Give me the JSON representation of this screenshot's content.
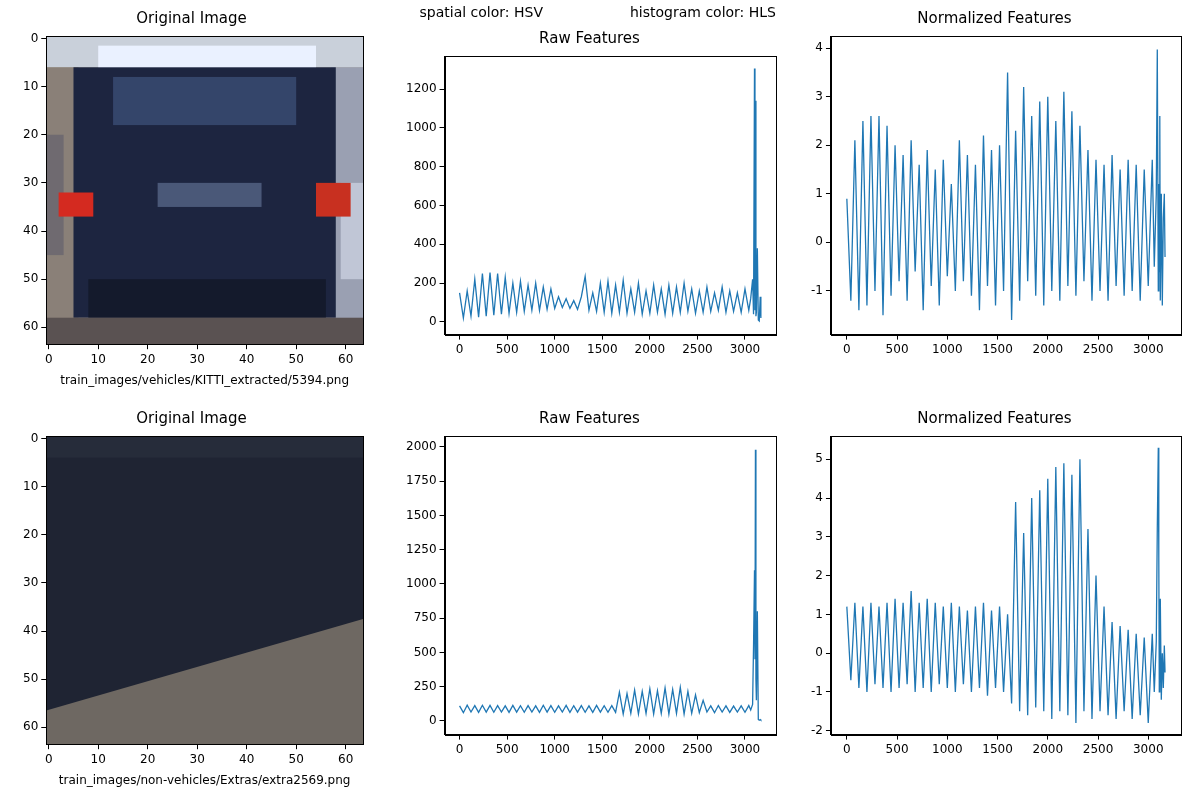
{
  "chart_data": [
    {
      "type": "image",
      "title": "Original Image",
      "xlabel": "train_images/vehicles/KITTI_extracted/5394.png",
      "xlim": [
        -0.5,
        63.5
      ],
      "ylim": [
        63.5,
        -0.5
      ],
      "xticks": [
        0,
        10,
        20,
        30,
        40,
        50,
        60
      ],
      "yticks": [
        0,
        10,
        20,
        30,
        40,
        50,
        60
      ],
      "grid": false
    },
    {
      "type": "line",
      "title": "Raw Features",
      "annotations": [
        "spatial color: HSV",
        "histogram color: HLS"
      ],
      "color": "#1f77b4",
      "grid": false,
      "xlim": [
        -158,
        3326
      ],
      "ylim": [
        -65,
        1370
      ],
      "xticks": [
        0,
        500,
        1000,
        1500,
        2000,
        2500,
        3000
      ],
      "yticks": [
        0,
        200,
        400,
        600,
        800,
        1000,
        1200
      ],
      "x": [
        0,
        40,
        80,
        120,
        160,
        200,
        240,
        280,
        320,
        360,
        400,
        440,
        480,
        520,
        560,
        600,
        640,
        680,
        720,
        760,
        800,
        840,
        880,
        920,
        960,
        1000,
        1040,
        1080,
        1120,
        1160,
        1200,
        1240,
        1280,
        1320,
        1360,
        1400,
        1440,
        1480,
        1520,
        1560,
        1600,
        1640,
        1680,
        1720,
        1760,
        1800,
        1840,
        1880,
        1920,
        1960,
        2000,
        2040,
        2080,
        2120,
        2160,
        2200,
        2240,
        2280,
        2320,
        2360,
        2400,
        2440,
        2480,
        2520,
        2560,
        2600,
        2640,
        2680,
        2720,
        2760,
        2800,
        2840,
        2880,
        2920,
        2960,
        3000,
        3040,
        3060,
        3080,
        3090,
        3100,
        3105,
        3110,
        3115,
        3120,
        3130,
        3140,
        3150,
        3160,
        3167
      ],
      "values": [
        150,
        20,
        160,
        30,
        220,
        25,
        250,
        30,
        255,
        35,
        250,
        40,
        230,
        45,
        200,
        50,
        210,
        55,
        190,
        60,
        200,
        60,
        180,
        65,
        170,
        70,
        130,
        75,
        120,
        70,
        110,
        65,
        130,
        235,
        60,
        150,
        55,
        200,
        50,
        210,
        45,
        190,
        50,
        215,
        45,
        170,
        50,
        200,
        40,
        160,
        45,
        190,
        50,
        170,
        40,
        190,
        45,
        180,
        50,
        200,
        55,
        170,
        45,
        160,
        50,
        180,
        55,
        150,
        60,
        180,
        50,
        160,
        55,
        150,
        50,
        170,
        60,
        120,
        220,
        40,
        1305,
        60,
        1140,
        30,
        50,
        380,
        10,
        5,
        130,
        20
      ]
    },
    {
      "type": "line",
      "title": "Normalized Features",
      "color": "#1f77b4",
      "grid": false,
      "xlim": [
        -158,
        3326
      ],
      "ylim": [
        -1.9,
        4.25
      ],
      "xticks": [
        0,
        500,
        1000,
        1500,
        2000,
        2500,
        3000
      ],
      "yticks": [
        -1,
        0,
        1,
        2,
        3,
        4
      ],
      "x": [
        0,
        40,
        80,
        120,
        160,
        200,
        240,
        280,
        320,
        360,
        400,
        440,
        480,
        520,
        560,
        600,
        640,
        680,
        720,
        760,
        800,
        840,
        880,
        920,
        960,
        1000,
        1040,
        1080,
        1120,
        1160,
        1200,
        1240,
        1280,
        1320,
        1360,
        1400,
        1440,
        1480,
        1520,
        1560,
        1600,
        1640,
        1680,
        1720,
        1760,
        1800,
        1840,
        1880,
        1920,
        1960,
        2000,
        2040,
        2080,
        2120,
        2160,
        2200,
        2240,
        2280,
        2320,
        2360,
        2400,
        2440,
        2480,
        2520,
        2560,
        2600,
        2640,
        2680,
        2720,
        2760,
        2800,
        2840,
        2880,
        2920,
        2960,
        3000,
        3040,
        3060,
        3080,
        3090,
        3100,
        3105,
        3110,
        3115,
        3120,
        3130,
        3140,
        3150,
        3160,
        3167
      ],
      "values": [
        0.9,
        -1.2,
        2.1,
        -1.4,
        2.5,
        -1.3,
        2.6,
        -1.0,
        2.6,
        -1.5,
        2.4,
        -1.1,
        2.0,
        -0.8,
        1.8,
        -1.2,
        2.1,
        -0.6,
        1.6,
        -1.4,
        1.9,
        -0.9,
        1.5,
        -1.3,
        1.7,
        -0.7,
        1.2,
        -1.0,
        2.1,
        -0.8,
        1.8,
        -1.1,
        1.6,
        -1.4,
        2.2,
        -0.9,
        1.9,
        -1.3,
        2.0,
        -1.0,
        3.5,
        -1.6,
        2.3,
        -1.2,
        3.2,
        -0.8,
        2.6,
        -1.1,
        2.9,
        -1.3,
        3.0,
        -1.0,
        2.5,
        -1.2,
        3.1,
        -0.9,
        2.7,
        -1.1,
        2.4,
        -0.8,
        1.9,
        -1.2,
        1.7,
        -1.0,
        1.6,
        -1.2,
        1.8,
        -0.9,
        1.5,
        -1.1,
        1.7,
        -1.0,
        1.6,
        -1.2,
        1.5,
        -0.9,
        1.7,
        -0.5,
        1.0,
        3.97,
        -1.0,
        1.2,
        -0.6,
        2.6,
        -1.2,
        1.0,
        -1.3,
        0.5,
        1.0,
        -0.3
      ]
    },
    {
      "type": "image",
      "title": "Original Image",
      "xlabel": "train_images/non-vehicles/Extras/extra2569.png",
      "xlim": [
        -0.5,
        63.5
      ],
      "ylim": [
        63.5,
        -0.5
      ],
      "xticks": [
        0,
        10,
        20,
        30,
        40,
        50,
        60
      ],
      "yticks": [
        0,
        10,
        20,
        30,
        40,
        50,
        60
      ],
      "grid": false
    },
    {
      "type": "line",
      "title": "Raw Features",
      "color": "#1f77b4",
      "grid": false,
      "xlim": [
        -158,
        3326
      ],
      "ylim": [
        -100,
        2080
      ],
      "xticks": [
        0,
        500,
        1000,
        1500,
        2000,
        2500,
        3000
      ],
      "yticks": [
        0,
        250,
        500,
        750,
        1000,
        1250,
        1500,
        1750,
        2000
      ],
      "x": [
        0,
        40,
        80,
        120,
        160,
        200,
        240,
        280,
        320,
        360,
        400,
        440,
        480,
        520,
        560,
        600,
        640,
        680,
        720,
        760,
        800,
        840,
        880,
        920,
        960,
        1000,
        1040,
        1080,
        1120,
        1160,
        1200,
        1240,
        1280,
        1320,
        1360,
        1400,
        1440,
        1480,
        1520,
        1560,
        1600,
        1640,
        1680,
        1720,
        1760,
        1800,
        1840,
        1880,
        1920,
        1960,
        2000,
        2040,
        2080,
        2120,
        2160,
        2200,
        2240,
        2280,
        2320,
        2360,
        2400,
        2440,
        2480,
        2520,
        2560,
        2600,
        2640,
        2680,
        2720,
        2760,
        2800,
        2840,
        2880,
        2920,
        2960,
        3000,
        3040,
        3060,
        3080,
        3090,
        3100,
        3105,
        3110,
        3115,
        3120,
        3130,
        3140,
        3150,
        3160,
        3167
      ],
      "values": [
        110,
        60,
        115,
        65,
        112,
        62,
        114,
        64,
        113,
        63,
        112,
        65,
        110,
        62,
        113,
        64,
        111,
        63,
        112,
        65,
        110,
        62,
        114,
        64,
        112,
        63,
        110,
        65,
        113,
        62,
        111,
        64,
        112,
        63,
        110,
        62,
        113,
        64,
        111,
        63,
        112,
        62,
        210,
        50,
        200,
        55,
        225,
        50,
        215,
        55,
        235,
        50,
        220,
        55,
        240,
        50,
        230,
        55,
        245,
        50,
        215,
        55,
        190,
        60,
        150,
        65,
        110,
        60,
        112,
        65,
        110,
        62,
        108,
        64,
        110,
        63,
        112,
        80,
        120,
        550,
        1100,
        450,
        1980,
        300,
        150,
        800,
        10,
        5,
        10,
        5
      ]
    },
    {
      "type": "line",
      "title": "Normalized Features",
      "color": "#1f77b4",
      "grid": false,
      "xlim": [
        -158,
        3326
      ],
      "ylim": [
        -2.1,
        5.6
      ],
      "xticks": [
        0,
        500,
        1000,
        1500,
        2000,
        2500,
        3000
      ],
      "yticks": [
        -2,
        -1,
        0,
        1,
        2,
        3,
        4,
        5
      ],
      "x": [
        0,
        40,
        80,
        120,
        160,
        200,
        240,
        280,
        320,
        360,
        400,
        440,
        480,
        520,
        560,
        600,
        640,
        680,
        720,
        760,
        800,
        840,
        880,
        920,
        960,
        1000,
        1040,
        1080,
        1120,
        1160,
        1200,
        1240,
        1280,
        1320,
        1360,
        1400,
        1440,
        1480,
        1520,
        1560,
        1600,
        1640,
        1680,
        1720,
        1760,
        1800,
        1840,
        1880,
        1920,
        1960,
        2000,
        2040,
        2080,
        2120,
        2160,
        2200,
        2240,
        2280,
        2320,
        2360,
        2400,
        2440,
        2480,
        2520,
        2560,
        2600,
        2640,
        2680,
        2720,
        2760,
        2800,
        2840,
        2880,
        2920,
        2960,
        3000,
        3040,
        3060,
        3080,
        3090,
        3100,
        3105,
        3110,
        3115,
        3120,
        3130,
        3140,
        3150,
        3160,
        3167
      ],
      "values": [
        1.2,
        -0.7,
        1.3,
        -0.9,
        1.2,
        -1.0,
        1.3,
        -0.8,
        1.2,
        -0.9,
        1.3,
        -1.0,
        1.4,
        -0.9,
        1.3,
        -0.8,
        1.6,
        -1.0,
        1.3,
        -0.9,
        1.4,
        -1.0,
        1.3,
        -0.8,
        1.2,
        -0.9,
        1.3,
        -1.0,
        1.2,
        -0.8,
        1.1,
        -1.0,
        1.2,
        -0.9,
        1.3,
        -1.1,
        1.1,
        -0.9,
        1.2,
        -1.0,
        1.0,
        -1.3,
        3.9,
        -1.5,
        3.1,
        -1.6,
        4.0,
        -1.4,
        4.2,
        -1.5,
        4.5,
        -1.7,
        4.8,
        -1.5,
        4.9,
        -1.6,
        4.6,
        -1.8,
        5.0,
        -1.5,
        3.2,
        -1.7,
        2.0,
        -1.5,
        1.2,
        -1.6,
        0.8,
        -1.7,
        0.7,
        -1.5,
        0.6,
        -1.7,
        0.5,
        -1.6,
        0.4,
        -1.8,
        0.5,
        -1.0,
        0.3,
        3.2,
        5.3,
        2.5,
        -1.0,
        1.0,
        1.4,
        -1.2,
        0.0,
        -0.9,
        0.2,
        -0.5
      ]
    }
  ]
}
